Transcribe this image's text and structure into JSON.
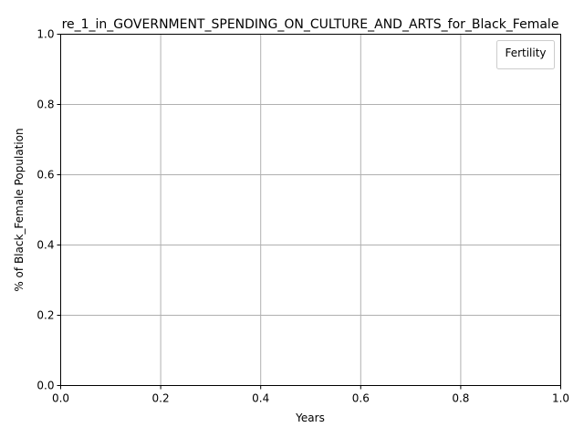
{
  "chart_data": {
    "type": "line",
    "title": "re_1_in_GOVERNMENT_SPENDING_ON_CULTURE_AND_ARTS_for_Black_Female",
    "xlabel": "Years",
    "ylabel": "% of Black_Female Population",
    "xlim": [
      0.0,
      1.0
    ],
    "ylim": [
      0.0,
      1.0
    ],
    "xticks": [
      "0.0",
      "0.2",
      "0.4",
      "0.6",
      "0.8",
      "1.0"
    ],
    "yticks": [
      "0.0",
      "0.2",
      "0.4",
      "0.6",
      "0.8",
      "1.0"
    ],
    "grid": true,
    "legend": {
      "title": "Fertility",
      "placement": "top-right",
      "entries": []
    },
    "series": []
  },
  "colors": {
    "grid": "#b0b0b0",
    "axes": "#000000",
    "legend_border": "#cccccc"
  }
}
